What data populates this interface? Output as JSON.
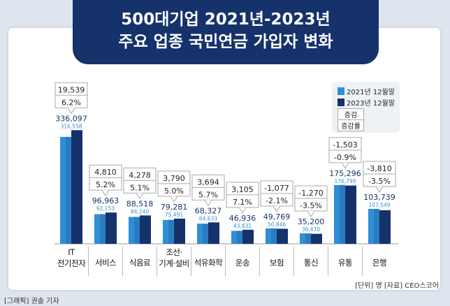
{
  "title_line1": "500대기업 2021년-2023년",
  "title_line2": "주요 업종 국민연금 가입자 변화",
  "legend": {
    "s2021": "2021년 12월말",
    "s2023": "2023년 12월말",
    "change": "증감",
    "rate": "증감률"
  },
  "source": "[단위] 명  [자료] CEO스코어",
  "credit": "[그래픽] 권솔 기자",
  "colors": {
    "s2021": "#2f8fd6",
    "s2023": "#16326b",
    "banner": "#16326b"
  },
  "chart_data": {
    "type": "bar",
    "categories": [
      "IT 전기전자",
      "서비스",
      "식음료",
      "조선·기계·설비",
      "석유화학",
      "운송",
      "보험",
      "통신",
      "유통",
      "은행"
    ],
    "series": [
      {
        "name": "2021년 12월말",
        "values": [
          316558,
          92153,
          84240,
          75491,
          64633,
          43831,
          50846,
          36470,
          176799,
          107549
        ],
        "labels": [
          "316,558",
          "92,153",
          "84,240",
          "75,491",
          "64,633",
          "43,831",
          "50,846",
          "36,470",
          "176,799",
          "107,549"
        ]
      },
      {
        "name": "2023년 12월말",
        "values": [
          336097,
          96963,
          88518,
          79281,
          68327,
          46936,
          49769,
          35200,
          175296,
          103739
        ],
        "labels": [
          "336,097",
          "96,963",
          "88,518",
          "79,281",
          "68,327",
          "46,936",
          "49,769",
          "35,200",
          "175,296",
          "103,739"
        ]
      }
    ],
    "change": [
      "19,539",
      "4,810",
      "4,278",
      "3,790",
      "3,694",
      "3,105",
      "-1,077",
      "-1,270",
      "-1,503",
      "-3,810"
    ],
    "rate": [
      "6.2%",
      "5.2%",
      "5.1%",
      "5.0%",
      "5.7%",
      "7.1%",
      "-2.1%",
      "-3.5%",
      "-0.9%",
      "-3.5%"
    ],
    "legend_placement": "top-right",
    "grid": false
  }
}
